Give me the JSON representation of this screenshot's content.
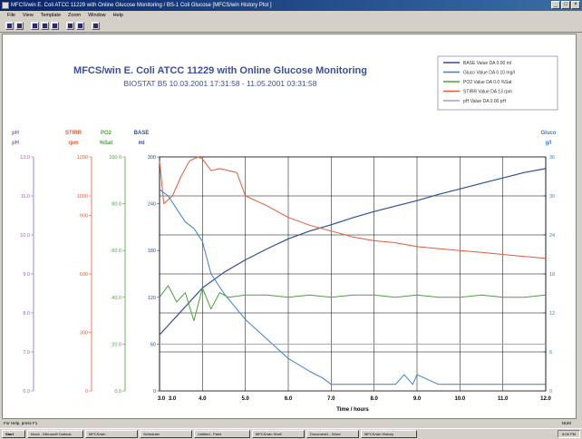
{
  "window": {
    "title": "MFCS/win E. Coli ATCC 11229 with Online Glucose Monitoring / BS-1 Coli Glucose [MFCS/win History Plot ]",
    "menu": [
      "File",
      "View",
      "Template",
      "Zoom",
      "Window",
      "Help"
    ],
    "status_left": "For Help, press F1",
    "status_right": "NUM"
  },
  "taskbar": {
    "start_label": "Start",
    "tasks": [
      "Inbox - Microsoft Outlook",
      "MFCS/win",
      "Scheduler",
      "Untitled - Paint",
      "MFCS/win Shell",
      "Document1 - Word",
      "MFCS/win History"
    ],
    "tray_time": "8:06 PM"
  },
  "chart_data": {
    "type": "line",
    "title": "MFCS/win E. Coli ATCC 11229 with Online Glucose Monitoring",
    "subtitle": "BIOSTAT B5 10.03.2001 17:31:58 - 11.05.2001 03:31:58",
    "xlabel": "Time / hours",
    "xlim": [
      3.0,
      12.0
    ],
    "x_ticks": [
      "3.0",
      "4.0",
      "5.0",
      "6.0",
      "7.0",
      "8.0",
      "9.0",
      "10.0",
      "11.0",
      "12.0"
    ],
    "x_tick_labels_drawn": [
      "3.0",
      "3.0",
      "4.0",
      "5.0",
      "6.0",
      "7.0",
      "8.0",
      "9.0",
      "10.0",
      "11.0",
      "12.0"
    ],
    "axes": [
      {
        "id": "ph",
        "label": "pH",
        "unit": "pH",
        "color": "#9966b3",
        "range": [
          6.0,
          12.0
        ],
        "ticks": [
          "6.0",
          "7.0",
          "8.0",
          "9.0",
          "10.0",
          "11.0",
          "12.0"
        ]
      },
      {
        "id": "stirr",
        "label": "STIRR",
        "unit": "rpm",
        "color": "#e35c3a",
        "range": [
          0,
          1200
        ],
        "ticks": [
          "0",
          "300",
          "600",
          "900",
          "1000",
          "1200"
        ]
      },
      {
        "id": "po2",
        "label": "PO2",
        "unit": "%Sat",
        "color": "#4aa33b",
        "range": [
          0,
          100
        ],
        "ticks": [
          "0.0",
          "20.0",
          "40.0",
          "60.0",
          "80.0",
          "100.0"
        ]
      },
      {
        "id": "base",
        "label": "BASE",
        "unit": "ml",
        "color": "#2e4f9c",
        "range": [
          0,
          300
        ],
        "ticks": [
          "0",
          "60",
          "120",
          "180",
          "240",
          "300"
        ]
      },
      {
        "id": "gluco",
        "label": "Gluco",
        "unit": "g/l",
        "color": "#3a7fd0",
        "range": [
          0,
          36
        ],
        "ticks": [
          "0",
          "6",
          "12",
          "18",
          "24",
          "30",
          "36"
        ]
      }
    ],
    "legend": [
      {
        "label": "BASE Value DA 0.00 ml",
        "color": "#2e4f9c"
      },
      {
        "label": "Gluco Value DA 0.10 mg/l",
        "color": "#3a7fd0"
      },
      {
        "label": "PO2 Value DA 0.0 %Sat",
        "color": "#4aa33b"
      },
      {
        "label": "STIRR Value DA 13 rpm",
        "color": "#e35c3a"
      },
      {
        "label": "pH Value DA 0.00 pH",
        "color": "#a29ad0"
      }
    ],
    "series": [
      {
        "name": "BASE",
        "axis": "base",
        "color": "#2e4f9c",
        "x": [
          3.0,
          3.5,
          4.0,
          4.5,
          5.0,
          5.5,
          6.0,
          6.5,
          7.0,
          7.5,
          8.0,
          8.5,
          9.0,
          9.5,
          10.0,
          10.5,
          11.0,
          11.5,
          12.0
        ],
        "y": [
          72,
          102,
          132,
          152,
          168,
          182,
          195,
          205,
          213,
          222,
          230,
          237,
          244,
          252,
          259,
          266,
          273,
          280,
          285
        ]
      },
      {
        "name": "Gluco",
        "axis": "gluco",
        "color": "#3a7fd0",
        "x": [
          3.0,
          3.2,
          3.4,
          3.6,
          3.8,
          4.0,
          4.2,
          4.5,
          5.0,
          5.5,
          6.0,
          6.5,
          6.8,
          7.0,
          7.5,
          8.0,
          8.5,
          8.7,
          8.9,
          9.0,
          9.5,
          10.0,
          10.5,
          11.0,
          11.5,
          12.0
        ],
        "y": [
          31,
          30,
          28,
          26,
          25,
          23,
          18,
          15,
          11,
          8,
          5,
          3,
          2,
          1,
          1,
          1,
          1,
          2.5,
          1,
          2.5,
          1,
          1,
          1,
          1,
          1,
          1
        ]
      },
      {
        "name": "PO2",
        "axis": "po2",
        "color": "#4aa33b",
        "x": [
          3.0,
          3.2,
          3.4,
          3.6,
          3.8,
          4.0,
          4.2,
          4.4,
          4.6,
          5.0,
          5.5,
          6.0,
          6.5,
          7.0,
          7.5,
          8.0,
          8.5,
          9.0,
          9.5,
          10.0,
          10.5,
          11.0,
          11.5,
          12.0
        ],
        "y": [
          40,
          45,
          38,
          42,
          30,
          44,
          35,
          42,
          40,
          41,
          41,
          40,
          41,
          40,
          41,
          41,
          40,
          41,
          40,
          40,
          41,
          40,
          40,
          41
        ]
      },
      {
        "name": "STIRR",
        "axis": "stirr",
        "color": "#e35c3a",
        "x": [
          3.0,
          3.1,
          3.3,
          3.5,
          3.7,
          3.9,
          4.0,
          4.2,
          4.4,
          4.8,
          5.0,
          5.5,
          6.0,
          6.5,
          7.0,
          7.5,
          8.0,
          8.5,
          9.0,
          9.5,
          10.0,
          10.5,
          11.0,
          11.5,
          12.0
        ],
        "y": [
          1180,
          960,
          1000,
          1100,
          1180,
          1200,
          1190,
          1130,
          1140,
          1120,
          1000,
          950,
          890,
          850,
          820,
          790,
          770,
          760,
          740,
          730,
          720,
          710,
          700,
          690,
          680
        ]
      },
      {
        "name": "pH",
        "axis": "ph",
        "color": "#a29ad0",
        "x": [
          3.0,
          4.0,
          5.0,
          6.0,
          7.0,
          8.0,
          9.0,
          10.0,
          11.0,
          12.0
        ],
        "y": [
          7.2,
          7.2,
          7.2,
          7.2,
          7.2,
          7.2,
          7.2,
          7.2,
          7.2,
          7.2
        ]
      }
    ],
    "grid": true
  }
}
